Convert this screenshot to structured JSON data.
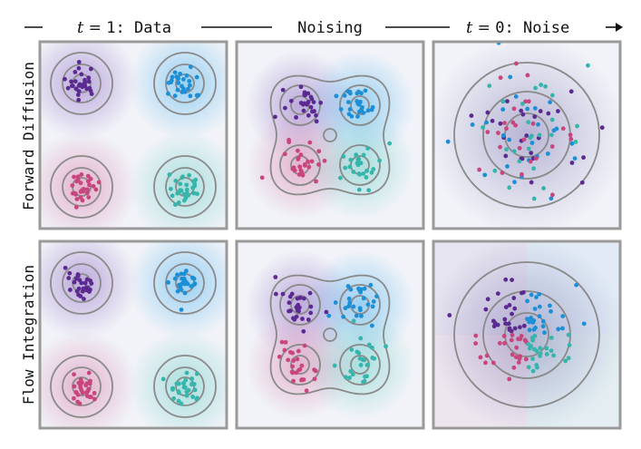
{
  "header": {
    "left": {
      "var": "t",
      "eq": " = ",
      "num": "1",
      "rest": ": Data"
    },
    "middle": "Noising",
    "right": {
      "var": "t",
      "eq": " = ",
      "num": "0",
      "rest": ": Noise"
    }
  },
  "rows": [
    {
      "label": "Forward Diffusion"
    },
    {
      "label": "Flow Integration"
    }
  ],
  "colors": {
    "purple": "#5b2a91",
    "blue": "#1c8fd6",
    "pink": "#c8457e",
    "teal": "#36b5ad",
    "contour": "#8a8a8a",
    "panel_border": "#9a9a9a",
    "panel_bg": "#f1f3f8"
  }
}
